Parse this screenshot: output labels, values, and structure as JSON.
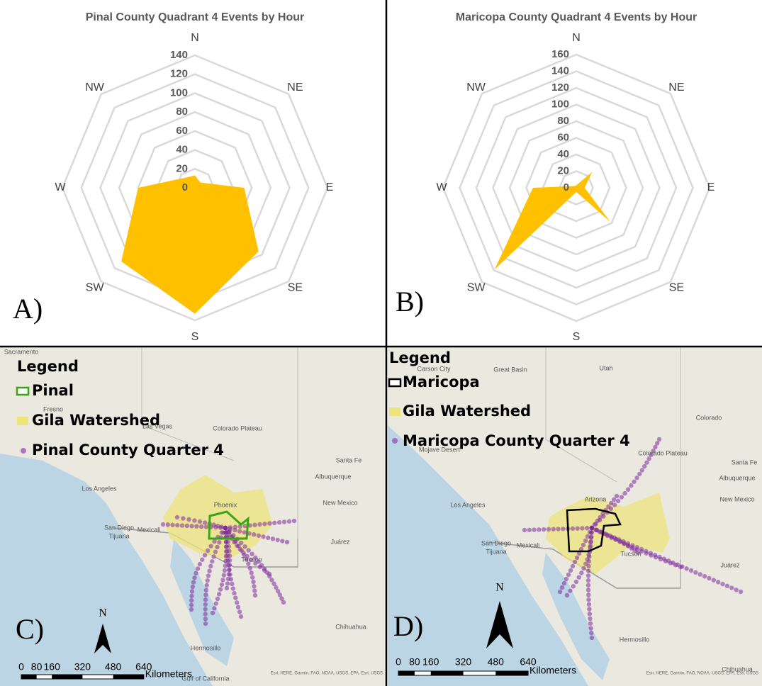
{
  "chart_data": [
    {
      "type": "radar",
      "title": "Pinal County Quadrant 4 Events by Hour",
      "panel_label": "A)",
      "categories": [
        "N",
        "NE",
        "E",
        "SE",
        "S",
        "SW",
        "W",
        "NW"
      ],
      "values": [
        13,
        8,
        52,
        95,
        133,
        110,
        60,
        15
      ],
      "color": "#ffc000",
      "ylim": [
        0,
        140
      ],
      "yticks": [
        0,
        20,
        40,
        60,
        80,
        100,
        120,
        140
      ],
      "grid": true
    },
    {
      "type": "radar",
      "title": "Maricopa County Quadrant 4 Events by Hour",
      "panel_label": "B)",
      "categories": [
        "N",
        "NE",
        "E",
        "SE",
        "S",
        "SW",
        "W",
        "NW"
      ],
      "values": [
        3,
        27,
        10,
        58,
        5,
        139,
        52,
        3
      ],
      "color": "#ffc000",
      "ylim": [
        0,
        160
      ],
      "yticks": [
        0,
        20,
        40,
        60,
        80,
        100,
        120,
        140,
        160
      ],
      "grid": true
    }
  ],
  "maps": [
    {
      "panel_label": "C)",
      "legend": {
        "title": "Legend",
        "items": [
          "Pinal",
          "Gila Watershed",
          "Pinal County Quarter 4"
        ]
      },
      "north": "N",
      "scale": {
        "ticks": [
          0,
          80,
          160,
          320,
          480,
          640
        ],
        "unit": "Kilometers"
      },
      "places": [
        "Sacramento",
        "Fresno",
        "Las Vegas",
        "Colorado Plateau",
        "Santa Fe",
        "Albuquerque",
        "New Mexico",
        "Los Angeles",
        "Phoenix",
        "San Diego",
        "Tijuana",
        "Mexicali",
        "Tucson",
        "Juárez",
        "Hermosillo",
        "Chihuahua",
        "Gulf of California"
      ],
      "attribution": "Esri, HERE, Garmin, FAO, NOAA, USGS, EPA, Esri, USGS"
    },
    {
      "panel_label": "D)",
      "legend": {
        "title": "Legend",
        "items": [
          "Maricopa",
          "Gila Watershed",
          "Maricopa County Quarter 4"
        ]
      },
      "north": "N",
      "scale": {
        "ticks": [
          0,
          80,
          160,
          320,
          480,
          640
        ],
        "unit": "Kilometers"
      },
      "places": [
        "Carson City",
        "Great Basin",
        "Utah",
        "Colorado",
        "Mojave Desert",
        "Colorado Plateau",
        "Santa Fe",
        "Albuquerque",
        "New Mexico",
        "Los Angeles",
        "Arizona",
        "San Diego",
        "Tijuana",
        "Mexicali",
        "Tucson",
        "Juárez",
        "Hermosillo",
        "Chihuahua"
      ],
      "attribution": "Esri, HERE, Garmin, FAO, NOAA, USGS, EPA, Esri, USGS"
    }
  ]
}
